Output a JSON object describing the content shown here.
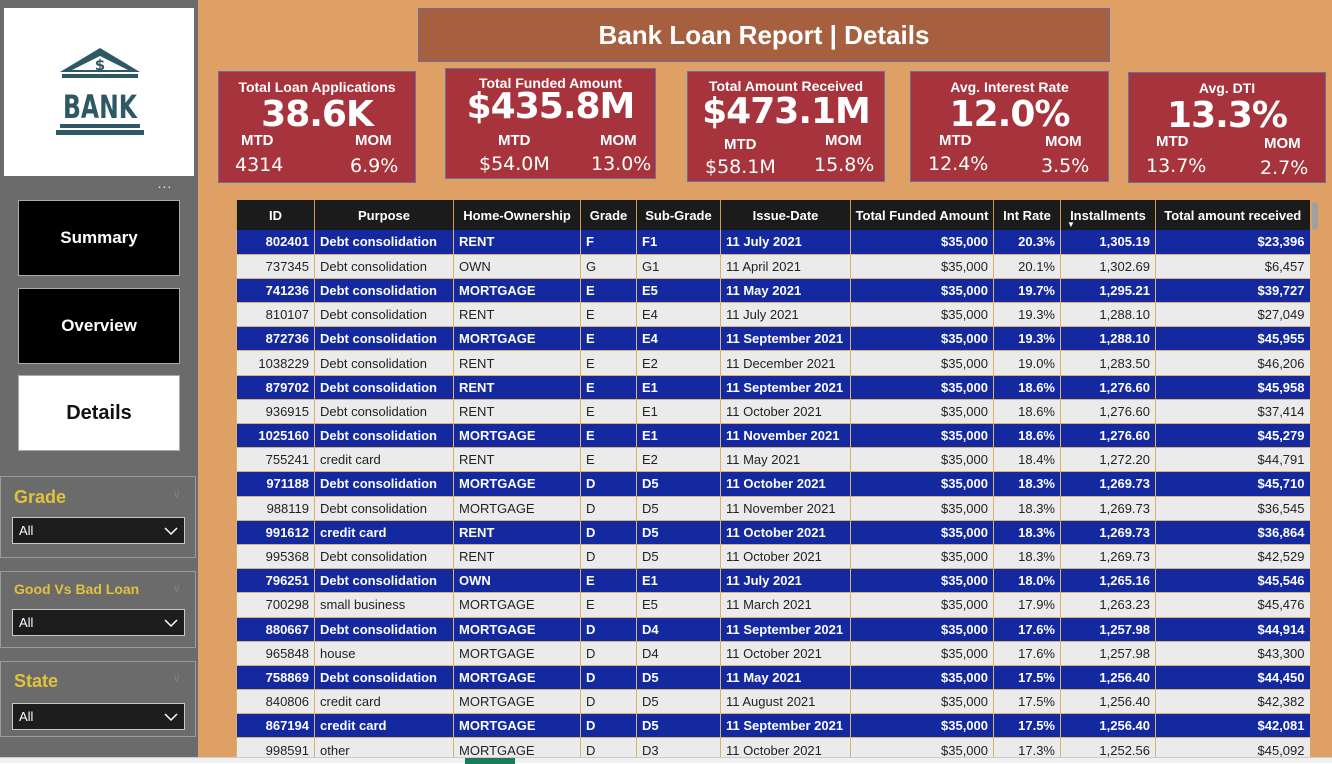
{
  "logo": {
    "text": "BANK",
    "symbol": "$"
  },
  "more_options": "...",
  "nav": [
    {
      "label": "Summary",
      "active": false
    },
    {
      "label": "Overview",
      "active": false
    },
    {
      "label": "Details",
      "active": true
    }
  ],
  "slicers": [
    {
      "title": "Grade",
      "value": "All"
    },
    {
      "title": "Good Vs Bad Loan",
      "value": "All"
    },
    {
      "title": "State",
      "value": "All"
    }
  ],
  "report_title": "Bank Loan Report | Details",
  "kpis": [
    {
      "title": "Total Loan Applications",
      "value": "38.6K",
      "mtd_label": "MTD",
      "mom_label": "MOM",
      "mtd": "4314",
      "mom": "6.9%"
    },
    {
      "title": "Total Funded Amount",
      "value": "$435.8M",
      "mtd_label": "MTD",
      "mom_label": "MOM",
      "mtd": "$54.0M",
      "mom": "13.0%"
    },
    {
      "title": "Total Amount Received",
      "value": "$473.1M",
      "mtd_label": "MTD",
      "mom_label": "MOM",
      "mtd": "$58.1M",
      "mom": "15.8%"
    },
    {
      "title": "Avg. Interest Rate",
      "value": "12.0%",
      "mtd_label": "MTD",
      "mom_label": "MOM",
      "mtd": "12.4%",
      "mom": "3.5%"
    },
    {
      "title": "Avg.  DTI",
      "value": "13.3%",
      "mtd_label": "MTD",
      "mom_label": "MOM",
      "mtd": "13.7%",
      "mom": "2.7%"
    }
  ],
  "table": {
    "columns": [
      "ID",
      "Purpose",
      "Home-Ownership",
      "Grade",
      "Sub-Grade",
      "Issue-Date",
      "Total Funded Amount",
      "Int Rate",
      "Installments",
      "Total amount received"
    ],
    "sorted_column": "Installments",
    "rows": [
      [
        "802401",
        "Debt consolidation",
        "RENT",
        "F",
        "F1",
        "11 July 2021",
        "$35,000",
        "20.3%",
        "1,305.19",
        "$23,396"
      ],
      [
        "737345",
        "Debt consolidation",
        "OWN",
        "G",
        "G1",
        "11 April 2021",
        "$35,000",
        "20.1%",
        "1,302.69",
        "$6,457"
      ],
      [
        "741236",
        "Debt consolidation",
        "MORTGAGE",
        "E",
        "E5",
        "11 May 2021",
        "$35,000",
        "19.7%",
        "1,295.21",
        "$39,727"
      ],
      [
        "810107",
        "Debt consolidation",
        "RENT",
        "E",
        "E4",
        "11 July 2021",
        "$35,000",
        "19.3%",
        "1,288.10",
        "$27,049"
      ],
      [
        "872736",
        "Debt consolidation",
        "MORTGAGE",
        "E",
        "E4",
        "11 September 2021",
        "$35,000",
        "19.3%",
        "1,288.10",
        "$45,955"
      ],
      [
        "1038229",
        "Debt consolidation",
        "RENT",
        "E",
        "E2",
        "11 December 2021",
        "$35,000",
        "19.0%",
        "1,283.50",
        "$46,206"
      ],
      [
        "879702",
        "Debt consolidation",
        "RENT",
        "E",
        "E1",
        "11 September 2021",
        "$35,000",
        "18.6%",
        "1,276.60",
        "$45,958"
      ],
      [
        "936915",
        "Debt consolidation",
        "RENT",
        "E",
        "E1",
        "11 October 2021",
        "$35,000",
        "18.6%",
        "1,276.60",
        "$37,414"
      ],
      [
        "1025160",
        "Debt consolidation",
        "MORTGAGE",
        "E",
        "E1",
        "11 November 2021",
        "$35,000",
        "18.6%",
        "1,276.60",
        "$45,279"
      ],
      [
        "755241",
        "credit card",
        "RENT",
        "E",
        "E2",
        "11 May 2021",
        "$35,000",
        "18.4%",
        "1,272.20",
        "$44,791"
      ],
      [
        "971188",
        "Debt consolidation",
        "MORTGAGE",
        "D",
        "D5",
        "11 October 2021",
        "$35,000",
        "18.3%",
        "1,269.73",
        "$45,710"
      ],
      [
        "988119",
        "Debt consolidation",
        "MORTGAGE",
        "D",
        "D5",
        "11 November 2021",
        "$35,000",
        "18.3%",
        "1,269.73",
        "$36,545"
      ],
      [
        "991612",
        "credit card",
        "RENT",
        "D",
        "D5",
        "11 October 2021",
        "$35,000",
        "18.3%",
        "1,269.73",
        "$36,864"
      ],
      [
        "995368",
        "Debt consolidation",
        "RENT",
        "D",
        "D5",
        "11 October 2021",
        "$35,000",
        "18.3%",
        "1,269.73",
        "$42,529"
      ],
      [
        "796251",
        "Debt consolidation",
        "OWN",
        "E",
        "E1",
        "11 July 2021",
        "$35,000",
        "18.0%",
        "1,265.16",
        "$45,546"
      ],
      [
        "700298",
        "small business",
        "MORTGAGE",
        "E",
        "E5",
        "11 March 2021",
        "$35,000",
        "17.9%",
        "1,263.23",
        "$45,476"
      ],
      [
        "880667",
        "Debt consolidation",
        "MORTGAGE",
        "D",
        "D4",
        "11 September 2021",
        "$35,000",
        "17.6%",
        "1,257.98",
        "$44,914"
      ],
      [
        "965848",
        "house",
        "MORTGAGE",
        "D",
        "D4",
        "11 October 2021",
        "$35,000",
        "17.6%",
        "1,257.98",
        "$43,300"
      ],
      [
        "758869",
        "Debt consolidation",
        "MORTGAGE",
        "D",
        "D5",
        "11 May 2021",
        "$35,000",
        "17.5%",
        "1,256.40",
        "$44,450"
      ],
      [
        "840806",
        "credit card",
        "MORTGAGE",
        "D",
        "D5",
        "11 August 2021",
        "$35,000",
        "17.5%",
        "1,256.40",
        "$42,382"
      ],
      [
        "867194",
        "credit card",
        "MORTGAGE",
        "D",
        "D5",
        "11 September 2021",
        "$35,000",
        "17.5%",
        "1,256.40",
        "$42,081"
      ],
      [
        "998591",
        "other",
        "MORTGAGE",
        "D",
        "D3",
        "11 October 2021",
        "$35,000",
        "17.3%",
        "1,252.56",
        "$45,092"
      ]
    ]
  },
  "colors": {
    "background": "#dfa065",
    "kpi_card": "#a7343c",
    "title_banner": "#a7603f",
    "row_highlight": "#1428a0",
    "slicer_title": "#e2c23c"
  }
}
